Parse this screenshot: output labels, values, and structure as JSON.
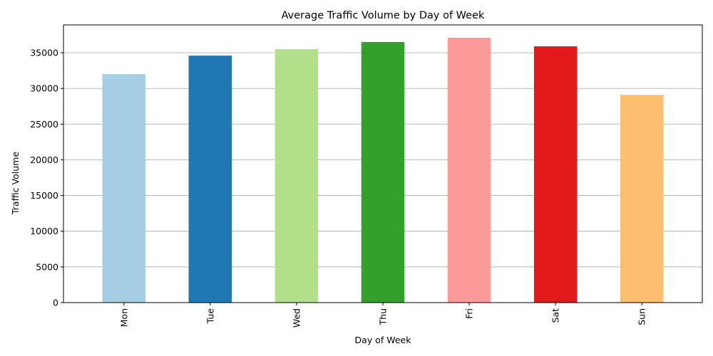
{
  "chart_data": {
    "type": "bar",
    "title": "Average Traffic Volume by Day of Week",
    "xlabel": "Day of Week",
    "ylabel": "Traffic Volume",
    "categories": [
      "Mon",
      "Tue",
      "Wed",
      "Thu",
      "Fri",
      "Sat",
      "Sun"
    ],
    "values": [
      32000,
      34600,
      35500,
      36500,
      37100,
      35900,
      29100
    ],
    "colors": [
      "#a6cee3",
      "#1f78b4",
      "#b2df8a",
      "#33a02c",
      "#fb9a99",
      "#e31a1c",
      "#fdbf6f"
    ],
    "ylim": [
      0,
      38900
    ],
    "yticks": [
      0,
      5000,
      10000,
      15000,
      20000,
      25000,
      30000,
      35000
    ],
    "ytick_labels": [
      "0",
      "5000",
      "10000",
      "15000",
      "20000",
      "25000",
      "30000",
      "35000"
    ],
    "grid": "y-axis",
    "xtick_rotation": "vertical"
  }
}
